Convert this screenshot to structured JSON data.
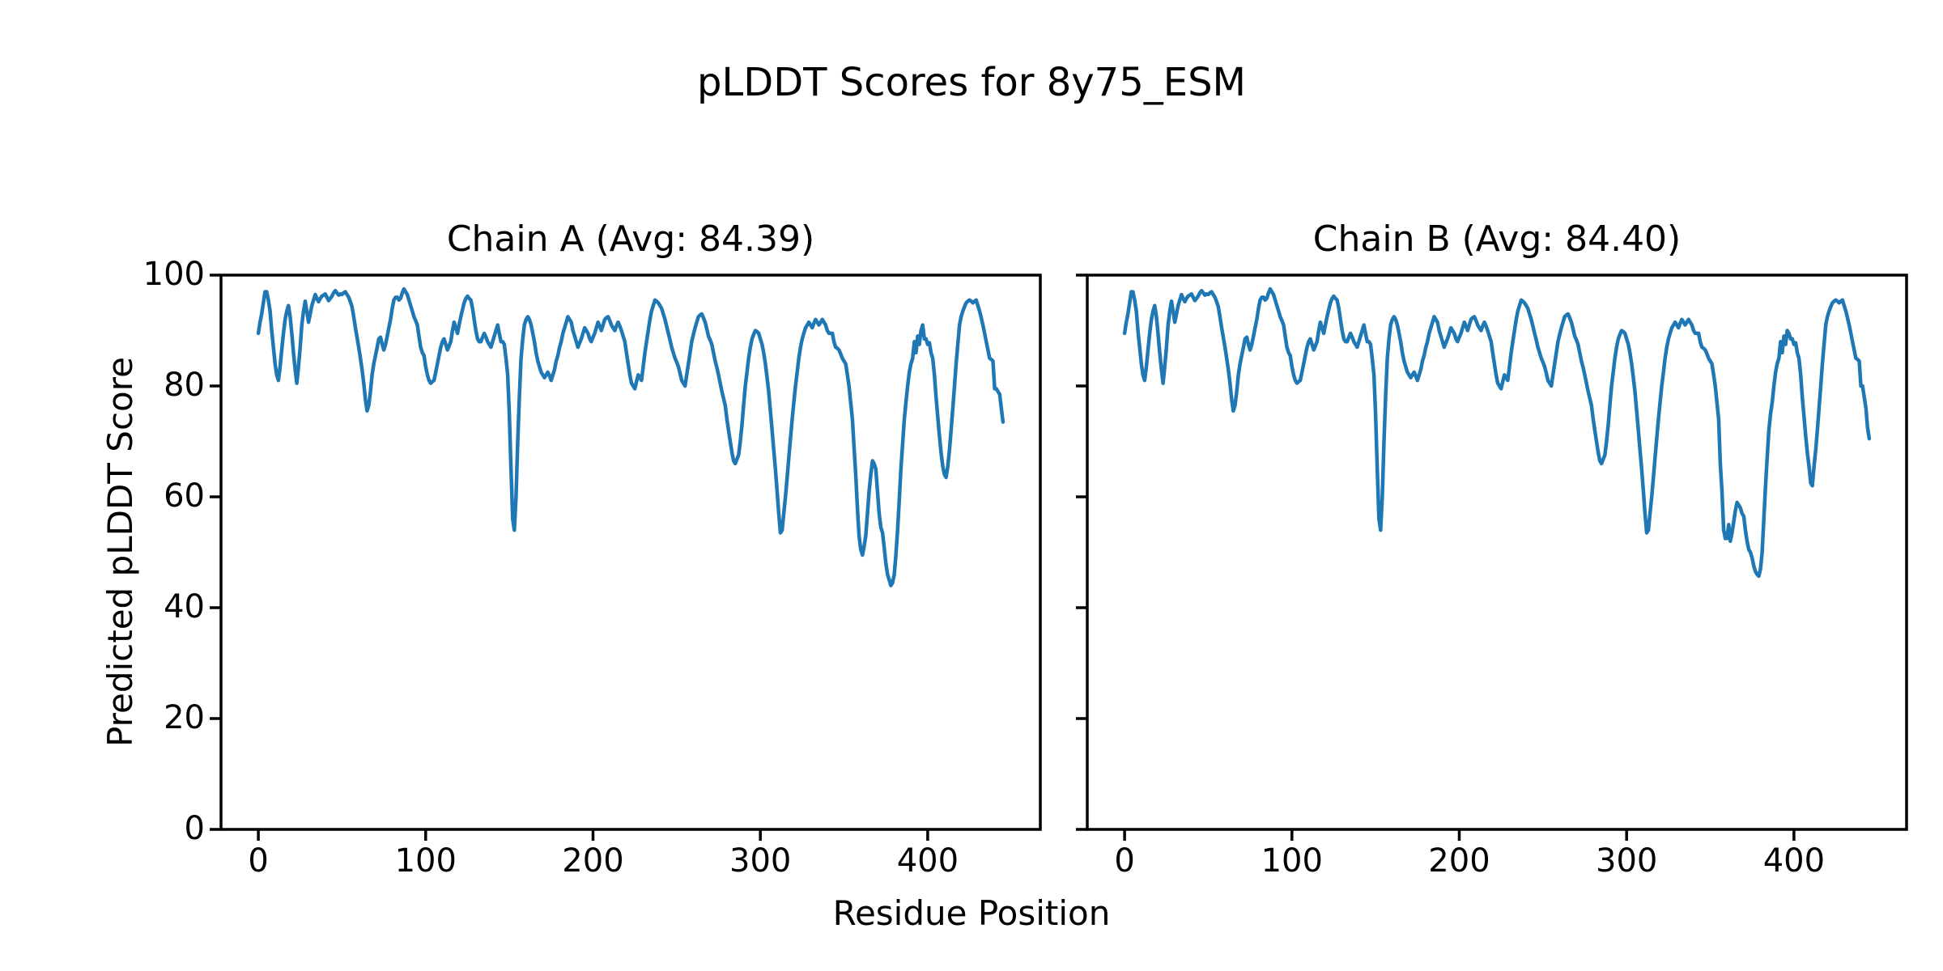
{
  "figure_title": "pLDDT Scores for 8y75_ESM",
  "xlabel": "Residue Position",
  "ylabel": "Predicted pLDDT Score",
  "line_color": "#1f77b4",
  "axis_color": "#000000",
  "background_color": "#ffffff",
  "chart_data": [
    {
      "type": "line",
      "title": "Chain A (Avg: 84.39)",
      "chain": "A",
      "avg": 84.39,
      "xlabel": "Residue Position",
      "ylabel": "Predicted pLDDT Score",
      "xticks": [
        0,
        100,
        200,
        300,
        400
      ],
      "yticks": [
        0,
        20,
        40,
        60,
        80,
        100
      ],
      "xlim": [
        -22.3,
        467.3
      ],
      "ylim": [
        0,
        100
      ],
      "grid": false,
      "legend": "none",
      "x_start": 0,
      "x_step": 1,
      "values": [
        89.5,
        91.5,
        93,
        95,
        97,
        97,
        95.5,
        93.5,
        90,
        87,
        84,
        82,
        81,
        83.5,
        86.5,
        89.5,
        92,
        93.5,
        94.5,
        92.5,
        89.5,
        86,
        83,
        80.5,
        83.5,
        87,
        91,
        93.5,
        95.3,
        93.5,
        91.5,
        93,
        94.5,
        95.5,
        96.5,
        95.8,
        95.2,
        95.8,
        96.2,
        96.4,
        96.6,
        96,
        95.4,
        95.8,
        96.2,
        96.8,
        97.2,
        96.8,
        96.4,
        96.6,
        96.5,
        96.8,
        97,
        96.5,
        96,
        95.2,
        94.3,
        92.5,
        90.5,
        88.8,
        87,
        85,
        83,
        80.5,
        77.5,
        75.5,
        76.5,
        79,
        82,
        84,
        85.5,
        87,
        88.5,
        88.8,
        87.5,
        86.5,
        87.5,
        89,
        90.5,
        92,
        94,
        95.5,
        96,
        96,
        95.5,
        95.8,
        96.8,
        97.5,
        97,
        96.5,
        95.5,
        94.5,
        93.5,
        92.5,
        91.8,
        91,
        89,
        87,
        86,
        85.5,
        83.5,
        82,
        81,
        80.5,
        80.8,
        81,
        82.5,
        84,
        85.5,
        87,
        88,
        88.5,
        87.5,
        86.5,
        87.2,
        88,
        90,
        91.5,
        90.5,
        89.5,
        91,
        92.5,
        93.8,
        95,
        95.8,
        96.2,
        95.8,
        95.5,
        94,
        92,
        90,
        88.5,
        88,
        88,
        88.8,
        89.5,
        88.8,
        88,
        87.5,
        87,
        88,
        89,
        90,
        91,
        89.5,
        88,
        88,
        87.5,
        85,
        82,
        75,
        65,
        56,
        54,
        60,
        70,
        78,
        85,
        88.5,
        91,
        92,
        92.5,
        92,
        91,
        89.5,
        88,
        86,
        84.5,
        83.5,
        82.5,
        82,
        81.5,
        82,
        82.5,
        81.8,
        81,
        82,
        83,
        84.5,
        85.5,
        87,
        88,
        89.5,
        90.5,
        91.5,
        92.5,
        92,
        91.5,
        90,
        89,
        88,
        87,
        87.8,
        88.5,
        89.5,
        90.5,
        90,
        89.5,
        88.5,
        88,
        88.8,
        89.5,
        90.5,
        91.5,
        90.8,
        90,
        91,
        92,
        92.3,
        92.5,
        91.8,
        91,
        90.5,
        90,
        90.8,
        91.5,
        90.8,
        90,
        89,
        88,
        86,
        84,
        82,
        80.5,
        80,
        79.5,
        80.8,
        82,
        81.5,
        81,
        83.5,
        86,
        88,
        90,
        92,
        93.5,
        94.5,
        95.5,
        95.3,
        95,
        94.5,
        94,
        93,
        92,
        90.8,
        89.5,
        88.3,
        87,
        86,
        85,
        84.3,
        83.5,
        82.3,
        81,
        80.5,
        80,
        82,
        84,
        86,
        88,
        89.3,
        90.5,
        91.5,
        92.5,
        92.8,
        93,
        92.3,
        91.5,
        90.3,
        89,
        88.3,
        87.5,
        86,
        84.5,
        83.3,
        82,
        80.5,
        79,
        77.8,
        76.5,
        74,
        72,
        70,
        68,
        66.5,
        66,
        66.8,
        67.5,
        70,
        73,
        76.5,
        80,
        82.5,
        85,
        87,
        88.5,
        89.3,
        90,
        89.8,
        89.5,
        88.5,
        87.5,
        86,
        84,
        81.5,
        79,
        75.5,
        72,
        68.5,
        65,
        61,
        57,
        53.5,
        54,
        57,
        60,
        63.5,
        67,
        70.5,
        74,
        77,
        80,
        82.5,
        85,
        87,
        88.5,
        89.5,
        90.5,
        91,
        91.5,
        91,
        90.5,
        91.3,
        92,
        91.5,
        91,
        91.5,
        92,
        91.5,
        91,
        90,
        89.5,
        89.5,
        89.5,
        88,
        87,
        86.8,
        86.5,
        85.8,
        85,
        84.5,
        84,
        82,
        80,
        77,
        74,
        69,
        64,
        58,
        53,
        50.5,
        49.5,
        51,
        53,
        57,
        61,
        64,
        66.5,
        66,
        65,
        61,
        57,
        54.5,
        53.5,
        51,
        48,
        46,
        45,
        44,
        44.5,
        46,
        49.5,
        54,
        59.5,
        65,
        69.5,
        74,
        77,
        80,
        82.5,
        84,
        85,
        88,
        86,
        89,
        87.5,
        90,
        91,
        88.5,
        88.5,
        87.5,
        87.8,
        86,
        85,
        82,
        78,
        74.5,
        71,
        68,
        65.5,
        64,
        63.5,
        65.5,
        68.5,
        72,
        76,
        80,
        84,
        87.5,
        91,
        92.5,
        93.5,
        94.3,
        95,
        95.3,
        95.5,
        95.3,
        95,
        95.3,
        95.5,
        94.5,
        93.5,
        92.3,
        91,
        89.5,
        88,
        86.5,
        85,
        84.8,
        84.5,
        79.5,
        79.5,
        79,
        78.5,
        76,
        73.5
      ]
    },
    {
      "type": "line",
      "title": "Chain B (Avg: 84.40)",
      "chain": "B",
      "avg": 84.4,
      "xlabel": "Residue Position",
      "ylabel": "Predicted pLDDT Score",
      "xticks": [
        0,
        100,
        200,
        300,
        400
      ],
      "yticks": [
        0,
        20,
        40,
        60,
        80,
        100
      ],
      "xlim": [
        -22.3,
        467.3
      ],
      "ylim": [
        0,
        100
      ],
      "grid": false,
      "legend": "none",
      "x_start": 0,
      "x_step": 1,
      "values": [
        89.5,
        91.5,
        93,
        95,
        97,
        97,
        95.5,
        93.5,
        90,
        87,
        84,
        82,
        81,
        83.5,
        86.5,
        89.5,
        92,
        93.5,
        94.5,
        92.5,
        89.5,
        86,
        83,
        80.5,
        83.5,
        87,
        91,
        93.5,
        95.3,
        93.5,
        91.5,
        93,
        94.5,
        95.5,
        96.5,
        95.8,
        95.2,
        95.8,
        96.2,
        96.4,
        96.6,
        96,
        95.4,
        95.8,
        96.2,
        96.8,
        97.2,
        96.8,
        96.4,
        96.6,
        96.5,
        96.8,
        97,
        96.5,
        96,
        95.2,
        94.3,
        92.5,
        90.5,
        88.8,
        87,
        85,
        83,
        80.5,
        77.5,
        75.5,
        76.5,
        79,
        82,
        84,
        85.5,
        87,
        88.5,
        88.8,
        87.5,
        86.5,
        87.5,
        89,
        90.5,
        92,
        94,
        95.5,
        96,
        96,
        95.5,
        95.8,
        96.8,
        97.5,
        97,
        96.5,
        95.5,
        94.5,
        93.5,
        92.5,
        91.8,
        91,
        89,
        87,
        86,
        85.5,
        83.5,
        82,
        81,
        80.5,
        80.8,
        81,
        82.5,
        84,
        85.5,
        87,
        88,
        88.5,
        87.5,
        86.5,
        87.2,
        88,
        90,
        91.5,
        90.5,
        89.5,
        91,
        92.5,
        93.8,
        95,
        95.8,
        96.2,
        95.8,
        95.5,
        94,
        92,
        90,
        88.5,
        88,
        88,
        88.8,
        89.5,
        88.8,
        88,
        87.5,
        87,
        88,
        89,
        90,
        91,
        89.5,
        88,
        88,
        87.5,
        85,
        82,
        75,
        65,
        56,
        54,
        60,
        70,
        78,
        85,
        88.5,
        91,
        92,
        92.5,
        92,
        91,
        89.5,
        88,
        86,
        84.5,
        83.5,
        82.5,
        82,
        81.5,
        82,
        82.5,
        81.8,
        81,
        82,
        83,
        84.5,
        85.5,
        87,
        88,
        89.5,
        90.5,
        91.5,
        92.5,
        92,
        91.5,
        90,
        89,
        88,
        87,
        87.8,
        88.5,
        89.5,
        90.5,
        90,
        89.5,
        88.5,
        88,
        88.8,
        89.5,
        90.5,
        91.5,
        90.8,
        90,
        91,
        92,
        92.3,
        92.5,
        91.8,
        91,
        90.5,
        90,
        90.8,
        91.5,
        90.8,
        90,
        89,
        88,
        86,
        84,
        82,
        80.5,
        80,
        79.5,
        80.8,
        82,
        81.5,
        81,
        83.5,
        86,
        88,
        90,
        92,
        93.5,
        94.5,
        95.5,
        95.3,
        95,
        94.5,
        94,
        93,
        92,
        90.8,
        89.5,
        88.3,
        87,
        86,
        85,
        84.3,
        83.5,
        82.3,
        81,
        80.5,
        80,
        82,
        84,
        86,
        88,
        89.3,
        90.5,
        91.5,
        92.5,
        92.8,
        93,
        92.3,
        91.5,
        90.3,
        89,
        88.3,
        87.5,
        86,
        84.5,
        83.3,
        82,
        80.5,
        79,
        77.8,
        76.5,
        74,
        72,
        70,
        68,
        66.5,
        66,
        66.8,
        67.5,
        70,
        73,
        76.5,
        80,
        82.5,
        85,
        87,
        88.5,
        89.3,
        90,
        89.8,
        89.5,
        88.5,
        87.5,
        86,
        84,
        81.5,
        79,
        75.5,
        72,
        68.5,
        65,
        61,
        57,
        53.5,
        54,
        57,
        60,
        63.5,
        67,
        70.5,
        74,
        77,
        80,
        82.5,
        85,
        87,
        88.5,
        89.5,
        90.5,
        91,
        91.5,
        91,
        90.5,
        91.3,
        92,
        91.5,
        91,
        91.5,
        92,
        91.5,
        91,
        90,
        89.5,
        89.5,
        89.5,
        88,
        87,
        86.8,
        86.5,
        85.8,
        85,
        84.5,
        84,
        82,
        80,
        77,
        74,
        66,
        61,
        54,
        52.5,
        52.5,
        55,
        52,
        53.5,
        55.5,
        57.5,
        59,
        58.5,
        58,
        57,
        56.5,
        54,
        52,
        50.5,
        50,
        49,
        47.5,
        46.5,
        46,
        45.7,
        47,
        50,
        56,
        62,
        67,
        72,
        75,
        77,
        80,
        82.5,
        84,
        85,
        88,
        86,
        89,
        87.5,
        90,
        89.5,
        88.5,
        88.5,
        87.5,
        87.8,
        86,
        85,
        82,
        78,
        74.5,
        71,
        68,
        65.5,
        62.5,
        62,
        65.5,
        68.5,
        72,
        76,
        80,
        84,
        87.5,
        91,
        92.5,
        93.5,
        94.3,
        95,
        95.3,
        95.5,
        95.3,
        95,
        95.3,
        95.5,
        94.5,
        93.5,
        92.3,
        91,
        89.5,
        88,
        86.5,
        85,
        84.8,
        84.5,
        80,
        80,
        78,
        76,
        72.5,
        70.5
      ]
    }
  ]
}
